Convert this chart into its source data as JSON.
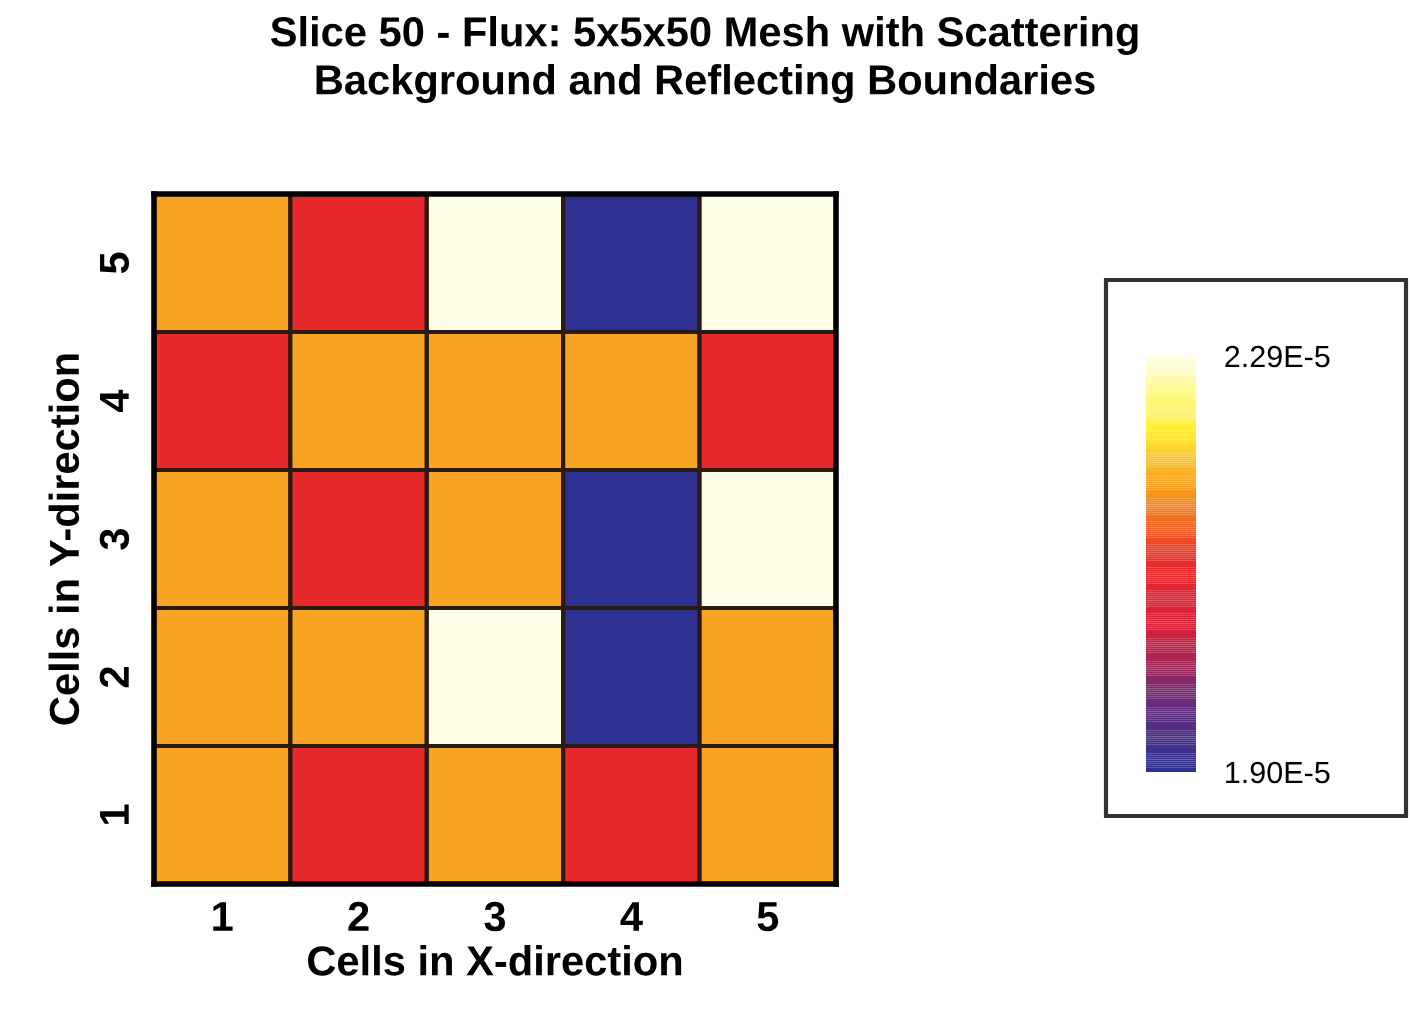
{
  "chart_data": {
    "type": "heatmap",
    "title": "Slice 50 - Flux: 5x5x50 Mesh with Scattering\nBackground and Reflecting Boundaries",
    "xlabel": "Cells in X-direction",
    "ylabel": "Cells in Y-direction",
    "categories": [
      "1",
      "2",
      "3",
      "4",
      "5"
    ],
    "y_categories": [
      "5",
      "4",
      "3",
      "2",
      "1"
    ],
    "cells": [
      [
        2.17e-05,
        2.09e-05,
        2.29e-05,
        1.9e-05,
        2.29e-05
      ],
      [
        2.09e-05,
        2.17e-05,
        2.17e-05,
        2.17e-05,
        2.09e-05
      ],
      [
        2.17e-05,
        2.09e-05,
        2.17e-05,
        1.9e-05,
        2.29e-05
      ],
      [
        2.17e-05,
        2.17e-05,
        2.29e-05,
        1.9e-05,
        2.17e-05
      ],
      [
        2.17e-05,
        2.09e-05,
        2.17e-05,
        2.09e-05,
        2.17e-05
      ]
    ],
    "colors": [
      "#2e3192",
      "#662d7a",
      "#d4203a",
      "#ea2a2a",
      "#f7941d",
      "#fff23a",
      "#ffffe8"
    ],
    "clim": [
      1.9e-05,
      2.29e-05
    ],
    "cticks": [
      {
        "value": 2.29e-05,
        "label": "2.29E-5"
      },
      {
        "value": 1.9e-05,
        "label": "1.90E-5"
      }
    ],
    "grid": false
  }
}
